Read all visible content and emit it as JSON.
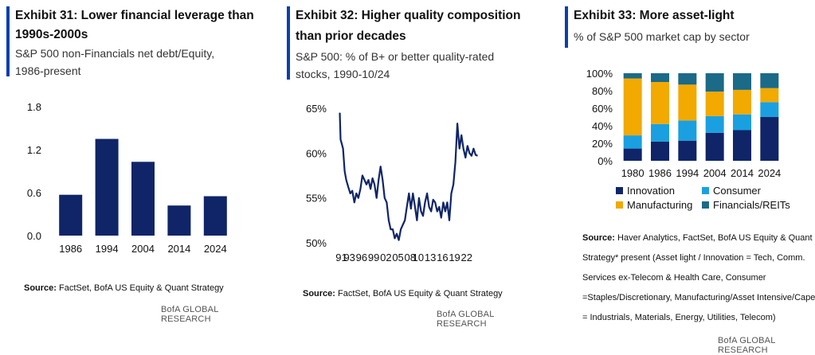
{
  "panels": [
    {
      "title_line1": "Exhibit 31: Lower financial leverage than",
      "title_line2": "1990s-2000s",
      "subtitle_line1": "S&P 500 non-Financials net debt/Equity,",
      "subtitle_line2": "1986-present",
      "source_label": "Source:",
      "source_text": " FactSet, BofA US Equity & Quant Strategy",
      "brand": "BofA GLOBAL RESEARCH"
    },
    {
      "title_line1": "Exhibit 32: Higher quality composition",
      "title_line2": "than prior decades",
      "subtitle_line1": "S&P 500: % of B+ or better quality-rated",
      "subtitle_line2": "stocks, 1990-10/24",
      "source_label": "Source:",
      "source_text": " FactSet, BofA US Equity & Quant Strategy",
      "brand": "BofA GLOBAL RESEARCH"
    },
    {
      "title_line1": "Exhibit 33: More asset-light",
      "subtitle_line1": "% of S&P 500 market cap by sector",
      "source_label": "Source:",
      "source_line1": " Haver Analytics, FactSet, BofA US Equity & Quant",
      "source_line2": "Strategy* present (Asset light / Innovation = Tech, Comm.",
      "source_line3": "Services ex-Telecom & Health Care, Consumer",
      "source_line4": "=Staples/Discretionary, Manufacturing/Asset Intensive/Capex",
      "source_line5": "= Industrials, Materials, Energy, Utilities, Telecom)",
      "brand": "BofA GLOBAL RESEARCH"
    }
  ],
  "colors": {
    "accent": "#0b3fae",
    "navy": "#0f2568",
    "orange": "#f2a900",
    "lightblue": "#1aa0e0",
    "teal": "#1b6a87"
  },
  "chart_data": [
    {
      "type": "bar",
      "categories": [
        "1986",
        "1994",
        "2004",
        "2014",
        "2024"
      ],
      "values": [
        0.57,
        1.35,
        1.03,
        0.42,
        0.55
      ],
      "ylim": [
        0,
        1.8
      ],
      "yticks": [
        0.0,
        0.6,
        1.2,
        1.8
      ],
      "ytick_labels": [
        "0.0",
        "0.6",
        "1.2",
        "1.8"
      ],
      "grid": false
    },
    {
      "type": "line",
      "x_range": [
        1990.5,
        2024.8
      ],
      "ylim": [
        50,
        65
      ],
      "yticks": [
        50,
        55,
        60,
        65
      ],
      "ytick_labels": [
        "50%",
        "55%",
        "60%",
        "65%"
      ],
      "xtick_years": [
        1991,
        1993,
        1996,
        1999,
        2002,
        2005,
        2008,
        2010,
        2013,
        2016,
        2019,
        2022
      ],
      "xtick_labels": [
        "91",
        "93",
        "96",
        "99",
        "02",
        "05",
        "08",
        "10",
        "13",
        "16",
        "19",
        "22"
      ],
      "x": [
        1990.6,
        1990.8,
        1991.0,
        1991.4,
        1991.8,
        1992.2,
        1992.7,
        1993.2,
        1993.7,
        1994.2,
        1994.7,
        1995.2,
        1995.7,
        1996.2,
        1996.7,
        1997.2,
        1997.7,
        1998.2,
        1998.7,
        1999.2,
        1999.7,
        2000.2,
        2000.7,
        2001.2,
        2001.7,
        2002.2,
        2002.7,
        2003.2,
        2003.7,
        2004.2,
        2004.7,
        2005.2,
        2005.7,
        2006.2,
        2006.7,
        2007.2,
        2007.7,
        2008.2,
        2008.7,
        2009.2,
        2009.7,
        2010.2,
        2010.7,
        2011.2,
        2011.7,
        2012.2,
        2012.7,
        2013.2,
        2013.7,
        2014.2,
        2014.7,
        2015.2,
        2015.7,
        2016.2,
        2016.7,
        2017.2,
        2017.7,
        2018.2,
        2018.7,
        2019.2,
        2019.7,
        2020.2,
        2020.7,
        2021.2,
        2021.7,
        2022.2,
        2022.7,
        2023.2,
        2023.7,
        2024.2,
        2024.7
      ],
      "values": [
        64.5,
        61.5,
        61.2,
        60.5,
        58.0,
        57.0,
        56.2,
        55.5,
        55.8,
        54.5,
        55.5,
        55.0,
        56.0,
        57.5,
        57.0,
        56.5,
        57.0,
        56.0,
        57.2,
        56.5,
        55.0,
        57.0,
        58.5,
        57.0,
        55.0,
        54.5,
        52.5,
        51.5,
        51.5,
        50.5,
        51.0,
        50.3,
        51.5,
        52.0,
        52.5,
        54.0,
        55.5,
        53.8,
        55.5,
        54.0,
        52.5,
        55.0,
        53.5,
        53.0,
        54.5,
        55.5,
        54.0,
        53.5,
        54.8,
        54.5,
        53.5,
        54.0,
        52.8,
        54.5,
        53.5,
        54.5,
        52.5,
        55.5,
        56.5,
        59.0,
        63.3,
        60.5,
        62.0,
        60.5,
        59.5,
        60.8,
        60.0,
        59.7,
        60.5,
        59.8,
        59.7
      ],
      "grid": false
    },
    {
      "type": "bar",
      "stacked": true,
      "categories": [
        "1980",
        "1986",
        "1994",
        "2004",
        "2014",
        "2024"
      ],
      "series": [
        {
          "name": "Innovation",
          "values": [
            14,
            22,
            23,
            32,
            35,
            50
          ]
        },
        {
          "name": "Consumer",
          "values": [
            15,
            20,
            23,
            19,
            18,
            17
          ]
        },
        {
          "name": "Manufacturing",
          "values": [
            65,
            48,
            41,
            28,
            28,
            16
          ]
        },
        {
          "name": "Financials/REITs",
          "values": [
            6,
            10,
            13,
            21,
            19,
            17
          ]
        }
      ],
      "ylim": [
        0,
        100
      ],
      "yticks": [
        0,
        20,
        40,
        60,
        80,
        100
      ],
      "ytick_labels": [
        "0%",
        "20%",
        "40%",
        "60%",
        "80%",
        "100%"
      ],
      "legend_position": "bottom",
      "grid": false
    }
  ]
}
